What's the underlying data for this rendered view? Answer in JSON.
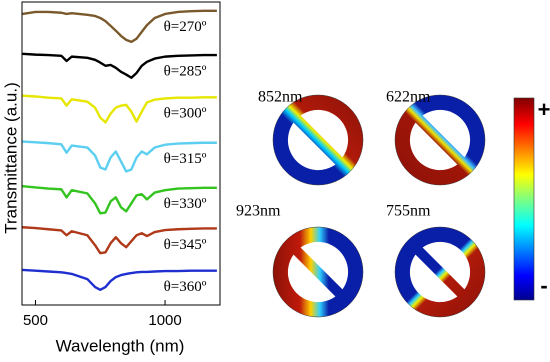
{
  "chart_data": {
    "type": "line",
    "xlabel": "Wavelength (nm)",
    "ylabel": "Transmittance (a.u.)",
    "x": [
      450,
      500,
      550,
      600,
      620,
      640,
      700,
      730,
      750,
      770,
      790,
      810,
      830,
      850,
      870,
      890,
      910,
      930,
      960,
      1000,
      1050,
      1100,
      1150,
      1200
    ],
    "xlim": [
      448,
      1212
    ],
    "xticks": [
      500,
      1000
    ],
    "ylim": [
      -0.4,
      7.2
    ],
    "series": [
      {
        "name": "θ=270º",
        "color": "#7a5a2c",
        "values": [
          6.9,
          6.95,
          6.95,
          6.93,
          6.9,
          6.92,
          6.88,
          6.85,
          6.8,
          6.72,
          6.6,
          6.48,
          6.35,
          6.25,
          6.2,
          6.28,
          6.45,
          6.62,
          6.8,
          6.9,
          6.95,
          6.97,
          6.98,
          6.98
        ]
      },
      {
        "name": "θ=285º",
        "color": "#000000",
        "values": [
          5.9,
          5.88,
          5.87,
          5.85,
          5.72,
          5.83,
          5.8,
          5.75,
          5.68,
          5.6,
          5.62,
          5.55,
          5.45,
          5.38,
          5.3,
          5.42,
          5.6,
          5.7,
          5.78,
          5.83,
          5.85,
          5.86,
          5.87,
          5.87
        ]
      },
      {
        "name": "θ=300º",
        "color": "#e6e600",
        "values": [
          4.85,
          4.83,
          4.8,
          4.78,
          4.6,
          4.76,
          4.7,
          4.55,
          4.3,
          4.18,
          4.4,
          4.55,
          4.6,
          4.62,
          4.45,
          4.2,
          4.45,
          4.68,
          4.75,
          4.78,
          4.8,
          4.8,
          4.81,
          4.81
        ]
      },
      {
        "name": "θ=315º",
        "color": "#5ccff0",
        "values": [
          3.7,
          3.68,
          3.66,
          3.63,
          3.42,
          3.6,
          3.55,
          3.35,
          3.05,
          3.0,
          3.3,
          3.45,
          3.2,
          2.95,
          3.0,
          3.3,
          3.45,
          3.38,
          3.55,
          3.62,
          3.65,
          3.66,
          3.67,
          3.67
        ]
      },
      {
        "name": "θ=330º",
        "color": "#33c41f",
        "values": [
          2.58,
          2.55,
          2.52,
          2.5,
          2.3,
          2.48,
          2.4,
          2.15,
          1.9,
          1.92,
          2.2,
          2.3,
          2.05,
          1.95,
          2.15,
          2.35,
          2.38,
          2.25,
          2.42,
          2.48,
          2.52,
          2.53,
          2.54,
          2.54
        ]
      },
      {
        "name": "θ=345º",
        "color": "#b0391a",
        "values": [
          1.55,
          1.53,
          1.5,
          1.47,
          1.35,
          1.45,
          1.35,
          1.1,
          0.9,
          0.92,
          1.15,
          1.3,
          1.15,
          1.05,
          1.2,
          1.35,
          1.4,
          1.33,
          1.43,
          1.48,
          1.5,
          1.51,
          1.52,
          1.52
        ]
      },
      {
        "name": "θ=360º",
        "color": "#1f2fd0",
        "values": [
          0.48,
          0.46,
          0.44,
          0.42,
          0.4,
          0.38,
          0.25,
          0.05,
          -0.02,
          0.05,
          0.2,
          0.3,
          0.35,
          0.38,
          0.4,
          0.42,
          0.43,
          0.43,
          0.44,
          0.45,
          0.45,
          0.46,
          0.46,
          0.46
        ]
      }
    ]
  },
  "figure": {
    "panels": [
      {
        "label": "852nm"
      },
      {
        "label": "622nm"
      },
      {
        "label": "923nm"
      },
      {
        "label": "755nm"
      }
    ],
    "colorbar": {
      "max_label": "+",
      "min_label": "-"
    }
  }
}
